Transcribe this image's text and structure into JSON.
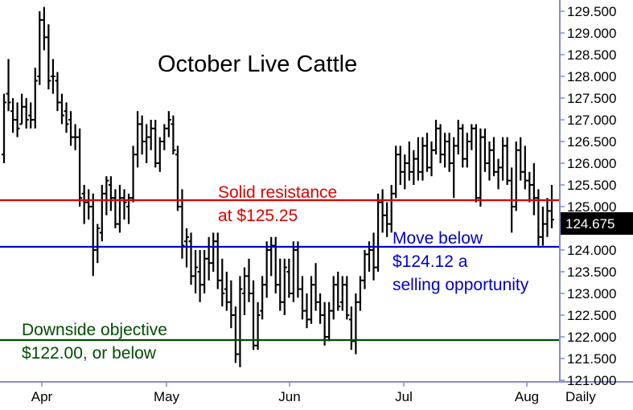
{
  "chart_data": {
    "type": "ohlc",
    "title": "October Live Cattle",
    "frequency_label": "Daily",
    "y_ticks": [
      "129.500",
      "129.000",
      "128.500",
      "128.000",
      "127.500",
      "127.000",
      "126.500",
      "126.000",
      "125.500",
      "125.000",
      "124.500",
      "124.000",
      "123.500",
      "123.000",
      "122.500",
      "122.000",
      "121.500",
      "121.000"
    ],
    "ylim": [
      121.0,
      129.8
    ],
    "last_price": "124.675",
    "x_labels": [
      "Apr",
      "May",
      "Jun",
      "Jul",
      "Aug"
    ],
    "grid": false,
    "colors": {
      "resistance": "#e00000",
      "support": "#0000c8",
      "objective": "#004d00",
      "bars": "#000000",
      "axis": "#8888d8"
    },
    "levels": [
      {
        "name": "resistance",
        "value": 125.25,
        "lines": [
          "Solid resistance",
          "at $125.25"
        ]
      },
      {
        "name": "support",
        "value": 124.12,
        "lines": [
          "Move below",
          "$124.12 a",
          "selling opportunity"
        ]
      },
      {
        "name": "objective",
        "value": 122.0,
        "lines": [
          "Downside objective",
          "$122.00, or below"
        ]
      }
    ],
    "bars": [
      [
        126.2,
        127.6,
        126.0,
        127.4
      ],
      [
        127.6,
        128.4,
        127.2,
        127.4
      ],
      [
        127.2,
        127.5,
        126.7,
        127.0
      ],
      [
        127.0,
        127.4,
        126.6,
        126.8
      ],
      [
        126.9,
        127.6,
        126.9,
        127.3
      ],
      [
        127.3,
        127.5,
        126.8,
        127.0
      ],
      [
        127.1,
        127.4,
        126.8,
        127.0
      ],
      [
        127.0,
        128.2,
        126.8,
        127.9
      ],
      [
        128.0,
        129.5,
        127.8,
        129.3
      ],
      [
        129.3,
        129.6,
        128.6,
        128.9
      ],
      [
        128.9,
        129.2,
        127.7,
        127.9
      ],
      [
        128.0,
        128.4,
        127.6,
        128.0
      ],
      [
        127.9,
        128.1,
        127.2,
        127.4
      ],
      [
        127.4,
        127.6,
        126.9,
        127.1
      ],
      [
        127.2,
        127.4,
        126.7,
        126.9
      ],
      [
        127.0,
        127.2,
        126.4,
        126.6
      ],
      [
        126.6,
        126.9,
        126.3,
        126.6
      ],
      [
        126.6,
        126.8,
        125.0,
        125.2
      ],
      [
        125.3,
        125.5,
        124.6,
        125.1
      ],
      [
        125.1,
        125.4,
        124.7,
        125.0
      ],
      [
        125.0,
        125.3,
        123.4,
        124.0
      ],
      [
        124.0,
        124.6,
        123.7,
        124.5
      ],
      [
        124.4,
        125.5,
        124.2,
        125.3
      ],
      [
        125.3,
        125.7,
        124.8,
        125.6
      ],
      [
        125.5,
        125.7,
        124.9,
        125.2
      ],
      [
        125.2,
        125.4,
        124.5,
        124.6
      ],
      [
        124.6,
        125.5,
        124.4,
        125.2
      ],
      [
        125.2,
        125.4,
        124.7,
        125.1
      ],
      [
        125.0,
        125.3,
        124.6,
        125.2
      ],
      [
        125.2,
        126.4,
        125.1,
        126.2
      ],
      [
        126.2,
        127.2,
        125.9,
        126.9
      ],
      [
        126.9,
        127.1,
        126.2,
        126.5
      ],
      [
        126.5,
        126.9,
        126.0,
        126.6
      ],
      [
        126.6,
        127.0,
        126.3,
        126.8
      ],
      [
        126.8,
        127.0,
        125.9,
        126.0
      ],
      [
        126.0,
        126.6,
        125.8,
        126.5
      ],
      [
        126.5,
        126.9,
        126.3,
        126.8
      ],
      [
        126.8,
        127.2,
        126.6,
        127.0
      ],
      [
        126.9,
        127.1,
        126.2,
        126.3
      ],
      [
        126.2,
        126.4,
        124.9,
        125.0
      ],
      [
        125.0,
        125.4,
        123.8,
        124.1
      ],
      [
        124.2,
        124.5,
        123.6,
        124.3
      ],
      [
        124.2,
        124.4,
        123.2,
        123.4
      ],
      [
        123.4,
        124.0,
        123.0,
        123.6
      ],
      [
        123.5,
        124.0,
        122.8,
        123.2
      ],
      [
        123.2,
        124.0,
        123.0,
        123.8
      ],
      [
        123.8,
        124.3,
        123.3,
        123.7
      ],
      [
        123.7,
        124.4,
        123.5,
        124.2
      ],
      [
        124.2,
        124.4,
        123.1,
        123.3
      ],
      [
        123.3,
        123.8,
        122.7,
        123.0
      ],
      [
        123.1,
        123.5,
        122.6,
        122.8
      ],
      [
        122.8,
        123.3,
        122.2,
        122.5
      ],
      [
        122.5,
        122.7,
        121.4,
        121.6
      ],
      [
        121.6,
        123.4,
        121.3,
        123.1
      ],
      [
        123.0,
        123.6,
        122.5,
        123.4
      ],
      [
        123.4,
        123.8,
        122.8,
        123.0
      ],
      [
        123.0,
        123.3,
        121.7,
        121.8
      ],
      [
        121.8,
        122.8,
        121.7,
        122.5
      ],
      [
        122.6,
        123.4,
        122.4,
        123.2
      ],
      [
        123.2,
        124.2,
        122.9,
        124.0
      ],
      [
        124.0,
        124.3,
        123.4,
        124.1
      ],
      [
        124.1,
        124.3,
        123.0,
        123.2
      ],
      [
        123.2,
        123.8,
        122.6,
        122.8
      ],
      [
        122.8,
        123.8,
        122.5,
        123.6
      ],
      [
        123.5,
        123.8,
        122.9,
        123.0
      ],
      [
        123.0,
        124.2,
        122.8,
        124.0
      ],
      [
        124.0,
        124.2,
        122.9,
        123.1
      ],
      [
        123.1,
        123.4,
        122.4,
        122.6
      ],
      [
        122.6,
        123.0,
        122.2,
        122.4
      ],
      [
        122.4,
        123.4,
        122.3,
        123.2
      ],
      [
        123.2,
        123.7,
        122.6,
        122.8
      ],
      [
        122.8,
        123.0,
        122.3,
        122.5
      ],
      [
        122.5,
        122.8,
        121.8,
        122.0
      ],
      [
        122.0,
        122.8,
        121.9,
        122.6
      ],
      [
        122.6,
        123.4,
        122.4,
        123.2
      ],
      [
        123.2,
        123.5,
        122.6,
        122.7
      ],
      [
        122.8,
        123.4,
        122.6,
        123.2
      ],
      [
        123.2,
        123.4,
        122.4,
        122.5
      ],
      [
        122.4,
        122.7,
        121.7,
        121.9
      ],
      [
        121.9,
        123.0,
        121.6,
        122.8
      ],
      [
        122.8,
        123.4,
        122.6,
        123.3
      ],
      [
        123.3,
        124.0,
        123.1,
        123.9
      ],
      [
        123.9,
        124.2,
        123.5,
        124.0
      ],
      [
        124.0,
        124.4,
        123.3,
        123.6
      ],
      [
        123.6,
        125.3,
        123.5,
        125.1
      ],
      [
        125.1,
        125.4,
        124.4,
        124.8
      ],
      [
        124.8,
        125.1,
        124.3,
        124.6
      ],
      [
        124.6,
        125.5,
        124.4,
        125.3
      ],
      [
        125.3,
        126.4,
        125.2,
        126.2
      ],
      [
        126.2,
        126.4,
        125.5,
        125.8
      ],
      [
        125.8,
        126.2,
        125.4,
        126.0
      ],
      [
        126.0,
        126.5,
        125.6,
        125.8
      ],
      [
        125.8,
        126.3,
        125.5,
        126.1
      ],
      [
        126.1,
        126.6,
        125.6,
        125.8
      ],
      [
        125.8,
        126.6,
        125.6,
        126.4
      ],
      [
        126.4,
        126.7,
        125.8,
        125.9
      ],
      [
        125.9,
        126.5,
        125.7,
        126.3
      ],
      [
        126.3,
        127.0,
        126.2,
        126.8
      ],
      [
        126.8,
        126.9,
        126.0,
        126.2
      ],
      [
        126.2,
        126.7,
        125.9,
        126.5
      ],
      [
        126.5,
        126.7,
        125.8,
        126.0
      ],
      [
        126.0,
        126.6,
        125.2,
        126.4
      ],
      [
        126.4,
        127.0,
        126.2,
        126.8
      ],
      [
        126.8,
        126.9,
        125.9,
        126.1
      ],
      [
        126.1,
        126.7,
        125.9,
        126.5
      ],
      [
        126.5,
        126.9,
        126.3,
        126.8
      ],
      [
        126.8,
        126.9,
        125.1,
        125.2
      ],
      [
        125.2,
        126.8,
        125.0,
        126.6
      ],
      [
        126.6,
        126.8,
        125.8,
        126.0
      ],
      [
        126.0,
        126.5,
        125.6,
        126.3
      ],
      [
        126.3,
        126.6,
        125.7,
        125.8
      ],
      [
        125.8,
        126.1,
        125.4,
        125.9
      ],
      [
        125.9,
        126.6,
        125.6,
        126.4
      ],
      [
        126.4,
        126.6,
        125.5,
        125.6
      ],
      [
        125.6,
        125.9,
        124.4,
        125.0
      ],
      [
        125.0,
        126.5,
        124.9,
        126.3
      ],
      [
        126.3,
        126.6,
        125.6,
        125.8
      ],
      [
        125.8,
        126.4,
        125.4,
        125.6
      ],
      [
        125.6,
        125.8,
        125.1,
        125.5
      ],
      [
        125.5,
        126.0,
        124.8,
        125.2
      ],
      [
        125.2,
        125.4,
        124.1,
        124.3
      ],
      [
        124.3,
        125.0,
        124.1,
        124.6
      ],
      [
        124.6,
        125.2,
        124.3,
        124.9
      ],
      [
        124.9,
        125.5,
        124.5,
        124.7
      ]
    ]
  }
}
